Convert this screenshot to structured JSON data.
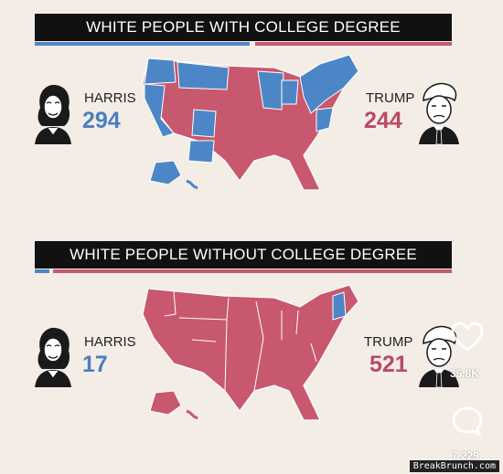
{
  "panels": [
    {
      "title": "WHITE PEOPLE WITH COLLEGE DEGREE",
      "harris": {
        "name": "HARRIS",
        "votes": "294"
      },
      "trump": {
        "name": "TRUMP",
        "votes": "244"
      },
      "harris_share": 0.546
    },
    {
      "title": "WHITE PEOPLE WITHOUT COLLEGE DEGREE",
      "harris": {
        "name": "HARRIS",
        "votes": "17"
      },
      "trump": {
        "name": "TRUMP",
        "votes": "521"
      },
      "harris_share": 0.032
    }
  ],
  "overlay": {
    "likes": "35.8K",
    "comments": "7,229",
    "like_icon": "heart-outline-icon",
    "comment_icon": "speech-bubble-icon"
  },
  "watermark": "BreakBrunch.com",
  "colors": {
    "harris_blue": "#4d86c6",
    "trump_red": "#c8586e",
    "background": "#f3ede6"
  }
}
